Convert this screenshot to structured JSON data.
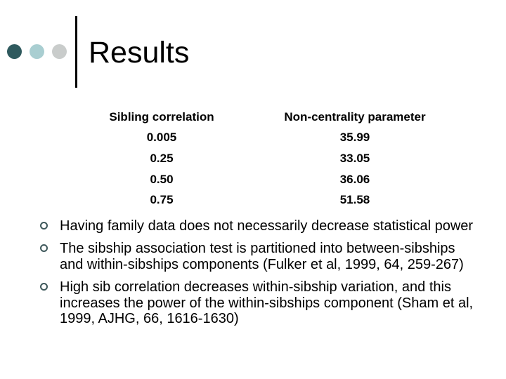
{
  "slide": {
    "title": "Results",
    "decorations": {
      "dot_colors": [
        "#2f5a5e",
        "#a9ced1",
        "#c9cccb"
      ],
      "accent_line_color": "#000000",
      "bullet_marker_color": "#3e585b",
      "background_color": "#ffffff",
      "text_color": "#000000"
    },
    "table": {
      "columns": [
        "Sibling correlation",
        "Non-centrality parameter"
      ],
      "rows": [
        [
          "0.005",
          "35.99"
        ],
        [
          "0.25",
          "33.05"
        ],
        [
          "0.50",
          "36.06"
        ],
        [
          "0.75",
          "51.58"
        ]
      ]
    },
    "bullets": [
      {
        "lines": [
          "Having family data does not necessarily decrease statistical power"
        ]
      },
      {
        "lines": [
          "The sibship association test is partitioned into between-sibships",
          "and within-sibships components (Fulker et al, 1999, 64, 259-267)"
        ]
      },
      {
        "lines": [
          "High sib correlation decreases within-sibship variation, and this",
          "increases the power of the within-sibships component (Sham et al,",
          "1999, AJHG, 66, 1616-1630)"
        ]
      }
    ]
  }
}
